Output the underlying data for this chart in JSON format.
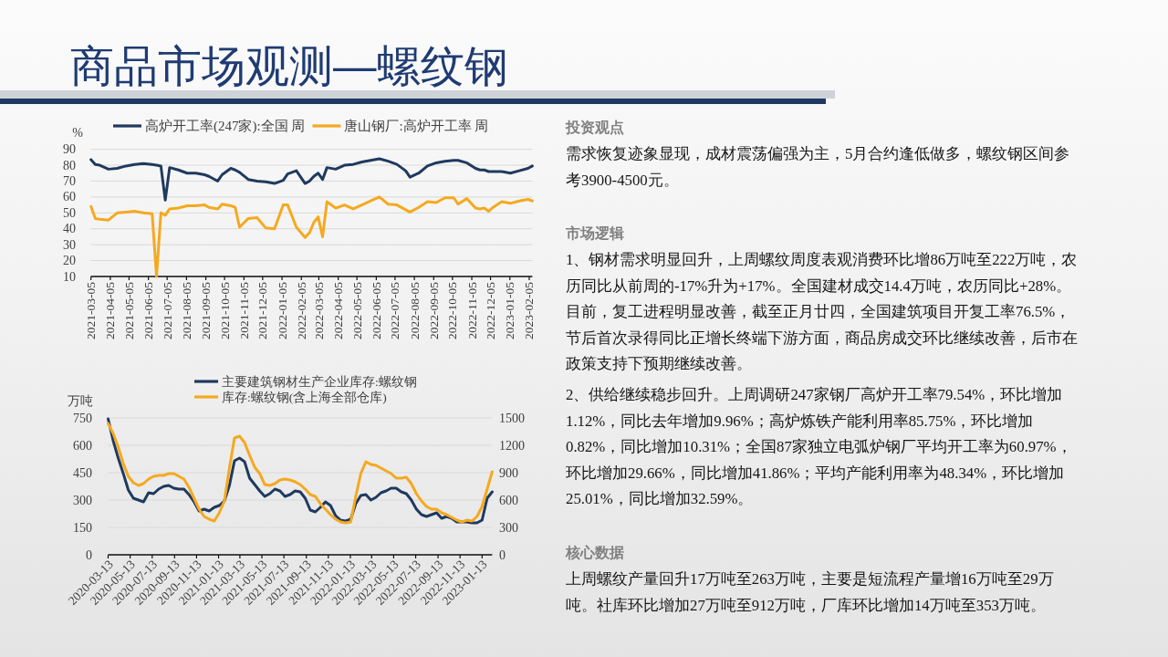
{
  "chart_data": [
    {
      "type": "other",
      "title": "商品市场观测—螺纹钢"
    },
    {
      "type": "line",
      "ylabel": "%",
      "legend": "top",
      "grid": "y",
      "xlim": [
        "2021-03-05",
        "2023-02-10"
      ],
      "xticks": [
        "2021-03-05",
        "2021-04-05",
        "2021-05-05",
        "2021-06-05",
        "2021-07-05",
        "2021-08-05",
        "2021-09-05",
        "2021-10-05",
        "2021-11-05",
        "2021-12-05",
        "2022-01-05",
        "2022-02-05",
        "2022-03-05",
        "2022-04-05",
        "2022-05-05",
        "2022-06-05",
        "2022-07-05",
        "2022-08-05",
        "2022-09-05",
        "2022-10-05",
        "2022-11-05",
        "2022-12-05",
        "2023-01-05",
        "2023-02-05"
      ],
      "ylim": [
        10,
        90
      ],
      "yticks": [
        10,
        20,
        30,
        40,
        50,
        60,
        70,
        80,
        90
      ],
      "x": [
        "2021-03-05",
        "2021-03-12",
        "2021-03-19",
        "2021-04-02",
        "2021-04-16",
        "2021-04-30",
        "2021-05-14",
        "2021-05-28",
        "2021-06-11",
        "2021-06-18",
        "2021-06-25",
        "2021-07-02",
        "2021-07-09",
        "2021-07-23",
        "2021-08-06",
        "2021-08-20",
        "2021-09-03",
        "2021-09-10",
        "2021-09-24",
        "2021-10-01",
        "2021-10-15",
        "2021-10-22",
        "2021-10-29",
        "2021-11-12",
        "2021-11-26",
        "2021-12-10",
        "2021-12-24",
        "2022-01-07",
        "2022-01-14",
        "2022-01-28",
        "2022-02-11",
        "2022-02-18",
        "2022-02-25",
        "2022-03-04",
        "2022-03-11",
        "2022-03-18",
        "2022-04-01",
        "2022-04-15",
        "2022-04-29",
        "2022-05-13",
        "2022-05-27",
        "2022-06-10",
        "2022-06-24",
        "2022-07-08",
        "2022-07-22",
        "2022-07-29",
        "2022-08-12",
        "2022-08-26",
        "2022-09-09",
        "2022-09-23",
        "2022-10-07",
        "2022-10-14",
        "2022-10-28",
        "2022-11-11",
        "2022-11-18",
        "2022-11-25",
        "2022-12-02",
        "2022-12-09",
        "2022-12-23",
        "2023-01-06",
        "2023-01-20",
        "2023-02-03",
        "2023-02-10"
      ],
      "series": [
        {
          "name": "高炉开工率(247家):全国 周",
          "color": "#1f3a5f",
          "values": [
            83.5,
            80.5,
            80,
            77.5,
            78,
            79.5,
            80.5,
            81,
            80.5,
            80,
            79.5,
            58,
            78.5,
            77,
            75,
            75,
            74,
            73,
            70,
            74,
            78,
            77,
            75.5,
            71,
            70,
            69.5,
            68.5,
            70.5,
            74.5,
            76.5,
            68.5,
            70,
            73,
            75,
            71,
            78.5,
            77.5,
            80,
            80.5,
            82,
            83,
            84,
            82.5,
            80.5,
            76.5,
            72.5,
            75,
            79.5,
            81.5,
            82.5,
            83,
            83,
            81.5,
            78,
            77,
            77,
            76,
            76,
            76,
            75,
            76.5,
            78,
            79.5
          ]
        },
        {
          "name": "唐山钢厂:高炉开工率 周",
          "color": "#f5a91f",
          "values": [
            54,
            46.5,
            46,
            45.5,
            50,
            50.5,
            51,
            50,
            49.5,
            10,
            50,
            48.5,
            52.5,
            53,
            54.5,
            54.5,
            55,
            53.5,
            52.5,
            55.5,
            54.5,
            53.5,
            41,
            46.5,
            47,
            40.5,
            40,
            55,
            55,
            41,
            34.5,
            37.5,
            44,
            47.5,
            35,
            57,
            53,
            55,
            52.5,
            55,
            57.5,
            60,
            55.5,
            55,
            52,
            50.5,
            53.5,
            57,
            56.5,
            59.5,
            59.5,
            55.5,
            59,
            53,
            52.5,
            53,
            51,
            53.5,
            57,
            56,
            57.5,
            58.5,
            57.5
          ]
        }
      ]
    },
    {
      "type": "line",
      "ylabel": "万吨",
      "legend": "top",
      "grid": "y",
      "xlim": [
        "2020-03-13",
        "2023-02-10"
      ],
      "xticks": [
        "2020-03-13",
        "2020-05-13",
        "2020-07-13",
        "2020-09-13",
        "2020-11-13",
        "2021-01-13",
        "2021-03-13",
        "2021-05-13",
        "2021-07-13",
        "2021-09-13",
        "2021-11-13",
        "2022-01-13",
        "2022-03-13",
        "2022-05-13",
        "2022-07-13",
        "2022-09-13",
        "2022-11-13",
        "2023-01-13"
      ],
      "ylim": [
        0,
        750
      ],
      "yticks": [
        0,
        150,
        300,
        450,
        600,
        750
      ],
      "y2lim": [
        0,
        1500
      ],
      "y2ticks": [
        0,
        300,
        600,
        900,
        1200,
        1500
      ],
      "x": [
        "2020-03-13",
        "2020-03-27",
        "2020-04-10",
        "2020-04-24",
        "2020-05-08",
        "2020-05-22",
        "2020-06-05",
        "2020-06-19",
        "2020-07-03",
        "2020-07-17",
        "2020-07-31",
        "2020-08-14",
        "2020-08-28",
        "2020-09-11",
        "2020-09-25",
        "2020-10-09",
        "2020-10-23",
        "2020-11-06",
        "2020-11-20",
        "2020-12-04",
        "2020-12-18",
        "2021-01-01",
        "2021-01-15",
        "2021-01-29",
        "2021-02-12",
        "2021-02-26",
        "2021-03-12",
        "2021-03-26",
        "2021-04-09",
        "2021-04-23",
        "2021-05-07",
        "2021-05-21",
        "2021-06-04",
        "2021-06-18",
        "2021-07-02",
        "2021-07-16",
        "2021-07-30",
        "2021-08-13",
        "2021-08-27",
        "2021-09-10",
        "2021-09-24",
        "2021-10-08",
        "2021-10-22",
        "2021-11-05",
        "2021-11-19",
        "2021-12-03",
        "2021-12-17",
        "2021-12-31",
        "2022-01-14",
        "2022-01-28",
        "2022-02-11",
        "2022-02-25",
        "2022-03-11",
        "2022-03-25",
        "2022-04-08",
        "2022-04-22",
        "2022-05-06",
        "2022-05-20",
        "2022-06-03",
        "2022-06-17",
        "2022-07-01",
        "2022-07-15",
        "2022-07-29",
        "2022-08-12",
        "2022-08-26",
        "2022-09-09",
        "2022-09-23",
        "2022-10-07",
        "2022-10-21",
        "2022-11-04",
        "2022-11-18",
        "2022-12-02",
        "2022-12-16",
        "2022-12-30",
        "2023-01-13",
        "2023-01-27",
        "2023-02-10"
      ],
      "series": [
        {
          "name": "主要建筑钢材生产企业库存:螺纹钢",
          "color": "#1f3a5f",
          "values": [
            745,
            625,
            530,
            445,
            355,
            310,
            300,
            290,
            340,
            335,
            360,
            375,
            380,
            365,
            360,
            360,
            330,
            290,
            240,
            250,
            240,
            260,
            270,
            295,
            380,
            515,
            530,
            510,
            420,
            385,
            350,
            320,
            335,
            360,
            350,
            320,
            330,
            350,
            345,
            310,
            245,
            235,
            260,
            290,
            270,
            215,
            190,
            185,
            195,
            280,
            325,
            330,
            300,
            315,
            340,
            350,
            365,
            365,
            345,
            335,
            300,
            250,
            220,
            210,
            220,
            230,
            200,
            210,
            200,
            180,
            180,
            180,
            175,
            175,
            190,
            310,
            345
          ]
        },
        {
          "name": "库存:螺纹钢(含上海全部仓库)",
          "color": "#f5a91f",
          "axis": "y2",
          "values": [
            1440,
            1330,
            1180,
            1000,
            860,
            790,
            760,
            780,
            830,
            860,
            870,
            870,
            890,
            890,
            860,
            830,
            740,
            620,
            500,
            420,
            390,
            370,
            460,
            590,
            950,
            1280,
            1300,
            1230,
            1090,
            960,
            890,
            770,
            760,
            780,
            820,
            830,
            820,
            800,
            770,
            720,
            660,
            640,
            560,
            500,
            440,
            390,
            360,
            350,
            360,
            640,
            890,
            1020,
            990,
            980,
            950,
            920,
            890,
            840,
            840,
            850,
            780,
            670,
            590,
            530,
            500,
            500,
            460,
            440,
            410,
            380,
            360,
            380,
            370,
            420,
            530,
            720,
            910
          ]
        }
      ]
    },
    {
      "type": "other",
      "title": "投资观点",
      "annotations": [
        "需求恢复迹象显现，成材震荡偏强为主，5月合约逢低做多，螺纹钢区间参考3900-4500元。"
      ]
    },
    {
      "type": "other",
      "title": "市场逻辑",
      "annotations": [
        "1、钢材需求明显回升，上周螺纹周度表观消费环比增86万吨至222万吨，农历同比从前周的-17%升为+17%。全国建材成交14.4万吨，农历同比+28%。目前，复工进程明显改善，截至正月廿四，全国建筑项目开复工率76.5%，节后首次录得同比正增长终端下游方面，商品房成交环比继续改善，后市在政策支持下预期继续改善。",
        "2、供给继续稳步回升。上周调研247家钢厂高炉开工率79.54%，环比增加1.12%，同比去年增加9.96%；高炉炼铁产能利用率85.75%，环比增加0.82%，同比增加10.31%；全国87家独立电弧炉钢厂平均开工率为60.97%，环比增加29.66%，同比增加41.86%；平均产能利用率为48.34%，环比增加25.01%，同比增加32.59%。"
      ]
    },
    {
      "type": "other",
      "title": "核心数据",
      "annotations": [
        "上周螺纹产量回升17万吨至263万吨，主要是短流程产量增16万吨至29万吨。社库环比增加27万吨至912万吨，厂库环比增加14万吨至353万吨。"
      ]
    }
  ]
}
